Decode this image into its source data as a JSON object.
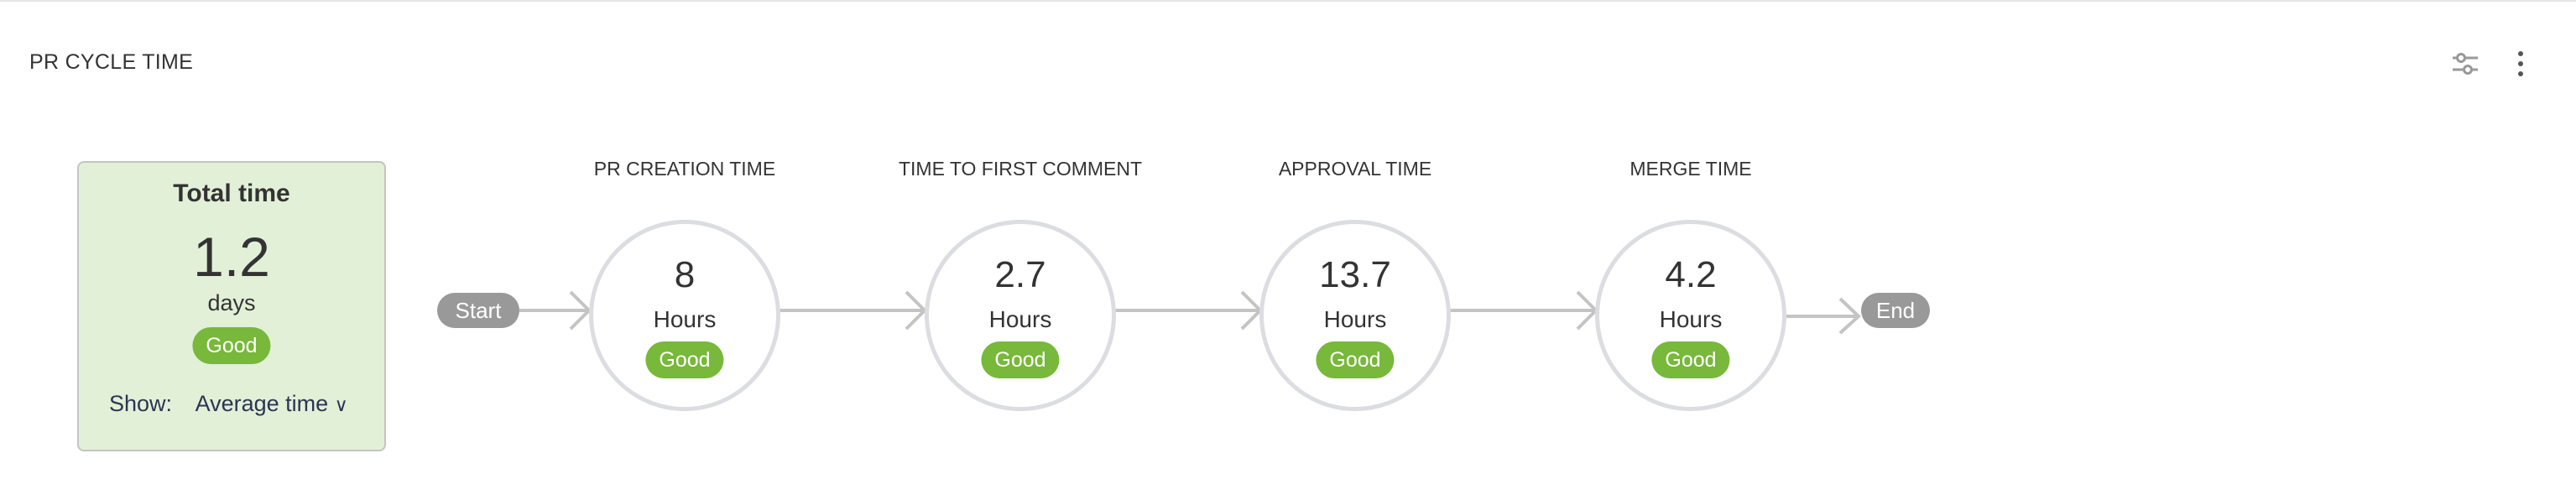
{
  "widget": {
    "title": "PR CYCLE TIME",
    "filter_icon": "sliders-icon",
    "menu_icon": "more-vertical-icon"
  },
  "summary": {
    "title": "Total time",
    "value": "1.2",
    "unit": "days",
    "status": "Good",
    "show_label": "Show:",
    "show_value": "Average time",
    "chevron": "⌄"
  },
  "flow": {
    "start": "Start",
    "end": "End"
  },
  "stages": [
    {
      "label": "PR CREATION TIME",
      "value": "8",
      "unit": "Hours",
      "status": "Good"
    },
    {
      "label": "TIME TO FIRST COMMENT",
      "value": "2.7",
      "unit": "Hours",
      "status": "Good"
    },
    {
      "label": "APPROVAL TIME",
      "value": "13.7",
      "unit": "Hours",
      "status": "Good"
    },
    {
      "label": "MERGE TIME",
      "value": "4.2",
      "unit": "Hours",
      "status": "Good"
    }
  ],
  "colors": {
    "good": "#78b83a",
    "card_bg": "#e2f0d7",
    "pill": "#999999",
    "ring": "#dcdde1"
  }
}
